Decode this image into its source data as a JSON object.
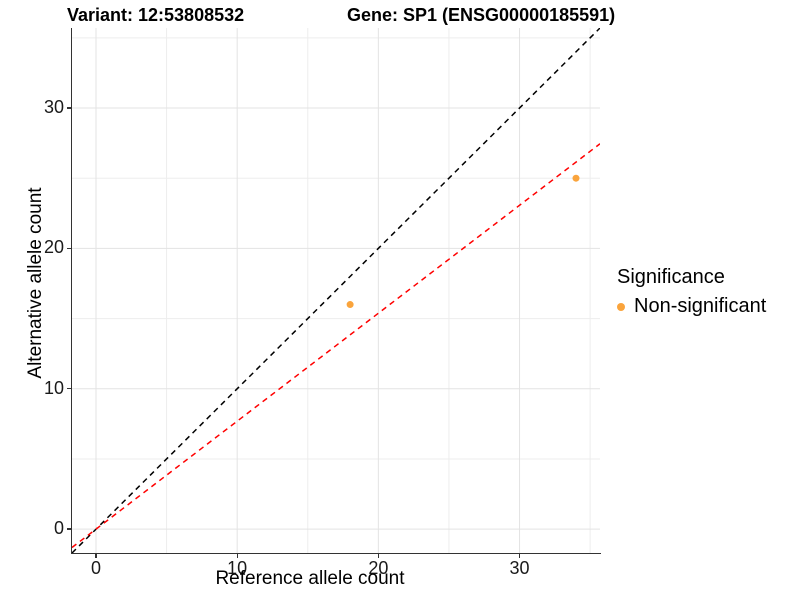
{
  "chart_data": {
    "type": "scatter",
    "title_left": "Variant: 12:53808532",
    "title_right": "Gene: SP1 (ENSG00000185591)",
    "xlabel": "Reference allele count",
    "ylabel": "Alternative allele count",
    "xlim": [
      -1.7,
      35.7
    ],
    "ylim": [
      -1.7,
      35.7
    ],
    "xticks": [
      0,
      10,
      20,
      30
    ],
    "yticks": [
      0,
      10,
      20,
      30
    ],
    "minor_ticks": [
      5,
      15,
      25,
      35
    ],
    "grid": true,
    "points": [
      {
        "x": 18,
        "y": 16,
        "series": "Non-significant"
      },
      {
        "x": 34,
        "y": 25,
        "series": "Non-significant"
      }
    ],
    "lines": [
      {
        "name": "identity-line",
        "slope": 1,
        "intercept": 0,
        "color": "#000000",
        "style": "dashed"
      },
      {
        "name": "fit-line",
        "slope": 0.769,
        "intercept": 0,
        "color": "#ff0000",
        "style": "dashed"
      }
    ],
    "legend": {
      "position": "right",
      "title": "Significance",
      "entries": [
        {
          "label": "Non-significant",
          "color": "#FAA43C"
        }
      ]
    },
    "colors": {
      "point": "#FAA43C",
      "grid_major": "#e3e3e3",
      "grid_minor": "#ededed",
      "axis_line": "#333333",
      "background": "#ffffff"
    }
  }
}
